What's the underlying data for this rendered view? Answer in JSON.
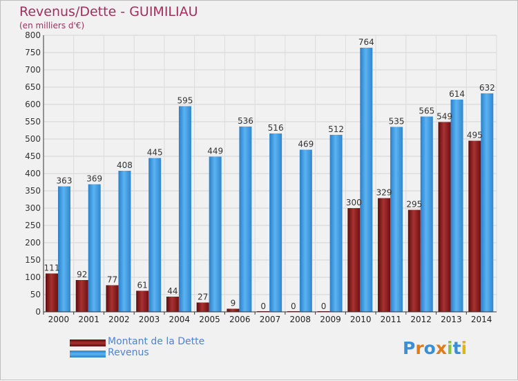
{
  "chart_data": {
    "type": "bar",
    "title": "Revenus/Dette - GUIMILIAU",
    "subtitle": "(en milliers d'€)",
    "categories": [
      "2000",
      "2001",
      "2002",
      "2003",
      "2004",
      "2005",
      "2006",
      "2007",
      "2008",
      "2009",
      "2010",
      "2011",
      "2012",
      "2013",
      "2014"
    ],
    "series": [
      {
        "name": "Montant de la Dette",
        "color": "#8b1a1a",
        "values": [
          111,
          92,
          77,
          61,
          44,
          27,
          9,
          0,
          0,
          0,
          300,
          329,
          295,
          549,
          495
        ]
      },
      {
        "name": "Revenus",
        "color": "#3f9ee6",
        "values": [
          363,
          369,
          408,
          445,
          595,
          449,
          536,
          516,
          469,
          512,
          764,
          535,
          565,
          614,
          632
        ]
      }
    ],
    "yticks": [
      0,
      50,
      100,
      150,
      200,
      250,
      300,
      350,
      400,
      450,
      500,
      550,
      600,
      650,
      700,
      750,
      800
    ],
    "ylim": [
      0,
      800
    ],
    "grid": true,
    "legend_position": "bottom-left"
  },
  "logo_text": "Proxiti"
}
